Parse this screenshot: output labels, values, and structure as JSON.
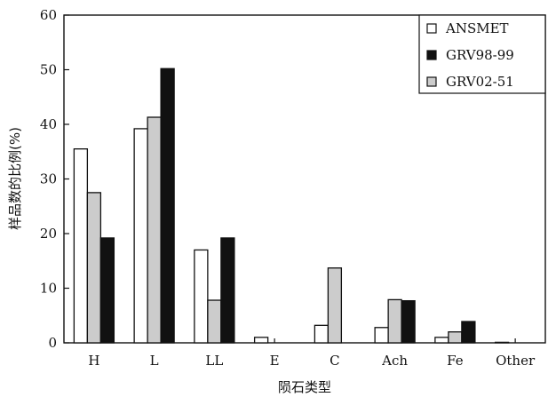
{
  "chart_data": {
    "type": "bar",
    "title": "",
    "xlabel": "陨石类型",
    "ylabel": "样品数的比例(%)",
    "ylim": [
      0,
      60
    ],
    "yticks": [
      0,
      10,
      20,
      30,
      40,
      50,
      60
    ],
    "categories": [
      "H",
      "L",
      "LL",
      "E",
      "C",
      "Ach",
      "Fe",
      "Other"
    ],
    "series": [
      {
        "name": "ANSMET",
        "color": "#ffffff",
        "values": [
          35.5,
          39.2,
          17.0,
          1.0,
          3.2,
          2.8,
          1.0,
          0.1
        ]
      },
      {
        "name": "GRV02-51",
        "color": "#cccccc",
        "values": [
          27.5,
          41.3,
          7.8,
          0,
          13.7,
          7.9,
          2.0,
          0
        ]
      },
      {
        "name": "GRV98-99",
        "color": "#111111",
        "values": [
          19.2,
          50.2,
          19.2,
          0,
          0,
          7.7,
          3.9,
          0
        ]
      }
    ],
    "legend": {
      "position": "top-right",
      "order": [
        "ANSMET",
        "GRV98-99",
        "GRV02-51"
      ]
    },
    "grid": false
  }
}
